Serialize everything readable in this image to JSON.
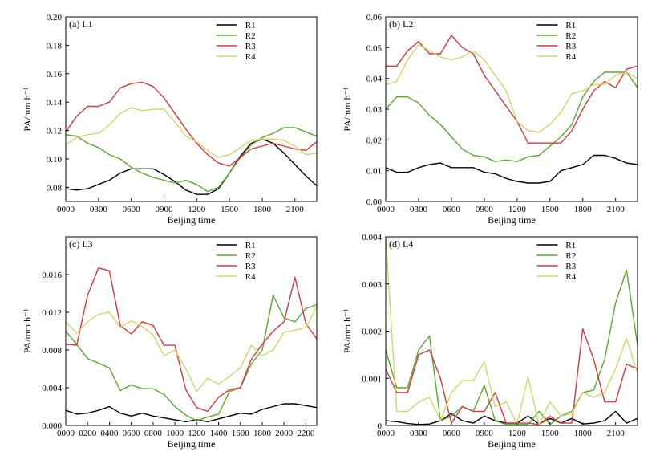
{
  "colors": {
    "R1": "#000000",
    "R2": "#55aa2a",
    "R3": "#d8373a",
    "R4": "#d7d36a"
  },
  "chart_data": [
    {
      "type": "line",
      "title": "(a)  L1",
      "xlabel": "Beijing time",
      "ylabel": "PA/mm h⁻¹",
      "xlim": [
        0,
        23
      ],
      "ylim": [
        0.07,
        0.2
      ],
      "x": [
        0,
        1,
        2,
        3,
        4,
        5,
        6,
        7,
        8,
        9,
        10,
        11,
        12,
        13,
        14,
        15,
        16,
        17,
        18,
        19,
        20,
        21,
        22,
        23
      ],
      "xticks": [
        0,
        3,
        6,
        9,
        12,
        15,
        18,
        21
      ],
      "xtick_labels": [
        "0000",
        "0300",
        "0600",
        "0900",
        "1200",
        "1500",
        "1800",
        "2100"
      ],
      "yticks": [
        0.08,
        0.1,
        0.12,
        0.14,
        0.16,
        0.18,
        0.2
      ],
      "ytick_labels": [
        "0.08",
        "0.10",
        "0.12",
        "0.14",
        "0.16",
        "0.18",
        "0.20"
      ],
      "legend_position": "top-right",
      "series": [
        {
          "name": "R1",
          "values": [
            0.079,
            0.078,
            0.079,
            0.082,
            0.085,
            0.09,
            0.093,
            0.093,
            0.093,
            0.089,
            0.084,
            0.078,
            0.075,
            0.075,
            0.079,
            0.09,
            0.102,
            0.111,
            0.114,
            0.111,
            0.104,
            0.096,
            0.088,
            0.081
          ]
        },
        {
          "name": "R2",
          "values": [
            0.117,
            0.116,
            0.111,
            0.108,
            0.103,
            0.1,
            0.094,
            0.09,
            0.087,
            0.085,
            0.083,
            0.085,
            0.082,
            0.077,
            0.08,
            0.09,
            0.101,
            0.11,
            0.115,
            0.118,
            0.122,
            0.122,
            0.119,
            0.116
          ]
        },
        {
          "name": "R3",
          "values": [
            0.119,
            0.13,
            0.137,
            0.137,
            0.14,
            0.15,
            0.153,
            0.154,
            0.151,
            0.143,
            0.132,
            0.121,
            0.111,
            0.103,
            0.097,
            0.095,
            0.101,
            0.107,
            0.109,
            0.111,
            0.109,
            0.107,
            0.106,
            0.112
          ]
        },
        {
          "name": "R4",
          "values": [
            0.11,
            0.115,
            0.117,
            0.118,
            0.124,
            0.132,
            0.136,
            0.134,
            0.135,
            0.135,
            0.126,
            0.116,
            0.112,
            0.106,
            0.101,
            0.103,
            0.108,
            0.113,
            0.114,
            0.114,
            0.113,
            0.109,
            0.103,
            0.104
          ]
        }
      ]
    },
    {
      "type": "line",
      "title": "(b)  L2",
      "xlabel": "Beijing time",
      "ylabel": "PA/mm h⁻¹",
      "xlim": [
        0,
        23
      ],
      "ylim": [
        0,
        0.06
      ],
      "x": [
        0,
        1,
        2,
        3,
        4,
        5,
        6,
        7,
        8,
        9,
        10,
        11,
        12,
        13,
        14,
        15,
        16,
        17,
        18,
        19,
        20,
        21,
        22,
        23
      ],
      "xticks": [
        0,
        3,
        6,
        9,
        12,
        15,
        18,
        21
      ],
      "xtick_labels": [
        "0000",
        "0300",
        "0600",
        "0900",
        "1200",
        "1500",
        "1800",
        "2100"
      ],
      "yticks": [
        0.0,
        0.01,
        0.02,
        0.03,
        0.04,
        0.05,
        0.06
      ],
      "ytick_labels": [
        "0.00",
        "0.01",
        "0.02",
        "0.03",
        "0.04",
        "0.05",
        "0.06"
      ],
      "legend_position": "top-right",
      "series": [
        {
          "name": "R1",
          "values": [
            0.011,
            0.0095,
            0.0095,
            0.011,
            0.012,
            0.0125,
            0.011,
            0.011,
            0.011,
            0.0095,
            0.009,
            0.0075,
            0.0065,
            0.006,
            0.006,
            0.0065,
            0.01,
            0.011,
            0.012,
            0.015,
            0.015,
            0.014,
            0.0125,
            0.012
          ]
        },
        {
          "name": "R2",
          "values": [
            0.03,
            0.034,
            0.034,
            0.032,
            0.028,
            0.025,
            0.021,
            0.017,
            0.015,
            0.0145,
            0.013,
            0.0135,
            0.013,
            0.0145,
            0.015,
            0.018,
            0.021,
            0.025,
            0.034,
            0.039,
            0.042,
            0.042,
            0.042,
            0.037
          ]
        },
        {
          "name": "R3",
          "values": [
            0.044,
            0.044,
            0.049,
            0.052,
            0.048,
            0.048,
            0.054,
            0.05,
            0.048,
            0.041,
            0.036,
            0.031,
            0.026,
            0.019,
            0.019,
            0.019,
            0.019,
            0.023,
            0.03,
            0.036,
            0.039,
            0.037,
            0.043,
            0.044
          ]
        },
        {
          "name": "R4",
          "values": [
            0.038,
            0.039,
            0.046,
            0.051,
            0.049,
            0.047,
            0.046,
            0.047,
            0.049,
            0.046,
            0.041,
            0.036,
            0.026,
            0.023,
            0.0225,
            0.025,
            0.029,
            0.035,
            0.036,
            0.038,
            0.038,
            0.041,
            0.042,
            0.04
          ]
        }
      ]
    },
    {
      "type": "line",
      "title": "(c)  L3",
      "xlabel": "Beijing time",
      "ylabel": "PA/mm h⁻¹",
      "xlim": [
        0,
        23
      ],
      "ylim": [
        0,
        0.02
      ],
      "x": [
        0,
        1,
        2,
        3,
        4,
        5,
        6,
        7,
        8,
        9,
        10,
        11,
        12,
        13,
        14,
        15,
        16,
        17,
        18,
        19,
        20,
        21,
        22,
        23
      ],
      "xticks": [
        0,
        2,
        4,
        6,
        8,
        10,
        12,
        14,
        16,
        18,
        20,
        22
      ],
      "xtick_labels": [
        "0000",
        "0200",
        "0400",
        "0600",
        "0800",
        "1000",
        "1200",
        "1400",
        "1600",
        "1800",
        "2000",
        "2200"
      ],
      "yticks": [
        0.0,
        0.004,
        0.008,
        0.012,
        0.016
      ],
      "ytick_labels": [
        "0.000",
        "0.004",
        "0.008",
        "0.012",
        "0.016"
      ],
      "legend_position": "top-right",
      "series": [
        {
          "name": "R1",
          "values": [
            0.0016,
            0.0012,
            0.0013,
            0.0016,
            0.002,
            0.0013,
            0.001,
            0.0013,
            0.001,
            0.0008,
            0.0006,
            0.0004,
            0.0006,
            0.0004,
            0.0007,
            0.001,
            0.0013,
            0.0012,
            0.0017,
            0.002,
            0.0023,
            0.0023,
            0.0021,
            0.0019
          ]
        },
        {
          "name": "R2",
          "values": [
            0.01,
            0.0086,
            0.0071,
            0.0066,
            0.0061,
            0.0037,
            0.0043,
            0.0039,
            0.0039,
            0.0033,
            0.002,
            0.0011,
            0.0005,
            0.0009,
            0.0012,
            0.0036,
            0.004,
            0.0065,
            0.008,
            0.0138,
            0.0114,
            0.011,
            0.0124,
            0.0128
          ]
        },
        {
          "name": "R3",
          "values": [
            0.0086,
            0.0085,
            0.0138,
            0.0167,
            0.0164,
            0.0106,
            0.0097,
            0.011,
            0.0106,
            0.0085,
            0.0085,
            0.0038,
            0.0019,
            0.0015,
            0.003,
            0.0038,
            0.004,
            0.007,
            0.0086,
            0.01,
            0.011,
            0.0157,
            0.0108,
            0.0092
          ]
        },
        {
          "name": "R4",
          "values": [
            0.011,
            0.0098,
            0.011,
            0.0118,
            0.012,
            0.0104,
            0.0111,
            0.0105,
            0.0096,
            0.0074,
            0.008,
            0.006,
            0.0036,
            0.005,
            0.0044,
            0.0052,
            0.0061,
            0.0085,
            0.0074,
            0.008,
            0.0099,
            0.0101,
            0.0104,
            0.0126
          ]
        }
      ]
    },
    {
      "type": "line",
      "title": "(d)  L4",
      "xlabel": "Beijing time",
      "ylabel": "PA/mm h⁻¹",
      "xlim": [
        0,
        23
      ],
      "ylim": [
        0,
        0.004
      ],
      "x": [
        0,
        1,
        2,
        3,
        4,
        5,
        6,
        7,
        8,
        9,
        10,
        11,
        12,
        13,
        14,
        15,
        16,
        17,
        18,
        19,
        20,
        21,
        22,
        23
      ],
      "xticks": [
        0,
        3,
        6,
        9,
        12,
        15,
        18,
        21
      ],
      "xtick_labels": [
        "0000",
        "0300",
        "0600",
        "0900",
        "1200",
        "1500",
        "1800",
        "2100"
      ],
      "yticks": [
        0.0,
        0.001,
        0.002,
        0.003,
        0.004
      ],
      "ytick_labels": [
        "0",
        "0.001",
        "0.002",
        "0.003",
        "0.004"
      ],
      "legend_position": "top-right",
      "series": [
        {
          "name": "R1",
          "values": [
            0.0001,
            8e-05,
            4e-05,
            2e-05,
            3e-05,
            0.0001,
            0.00025,
            0.0001,
            5e-05,
            0.0002,
            0.0001,
            5e-05,
            5e-05,
            0.0002,
            3e-05,
            0.00015,
            5e-05,
            0.00015,
            3e-05,
            5e-05,
            0.0001,
            0.0003,
            5e-05,
            0.00015
          ]
        },
        {
          "name": "R2",
          "values": [
            0.0016,
            0.0008,
            0.0008,
            0.0016,
            0.0019,
            0.0001,
            0.0002,
            0.0004,
            0.0003,
            0.00085,
            0.0001,
            2e-05,
            2e-05,
            2e-05,
            0.0003,
            2e-05,
            0.0002,
            0.0003,
            0.0007,
            0.00075,
            0.0014,
            0.0026,
            0.0033,
            0.0017
          ]
        },
        {
          "name": "R3",
          "values": [
            0.0012,
            0.0007,
            0.0007,
            0.0015,
            0.0016,
            0.001,
            5e-05,
            0.0004,
            0.0003,
            0.0003,
            0.0007,
            5e-05,
            5e-05,
            5e-05,
            2e-05,
            0.0002,
            5e-05,
            5e-05,
            0.00205,
            0.0014,
            0.0005,
            0.0005,
            0.0013,
            0.0012
          ]
        },
        {
          "name": "R4",
          "values": [
            0.0042,
            0.0003,
            0.0003,
            0.0005,
            0.0006,
            0.0001,
            0.0007,
            0.00095,
            0.00095,
            0.00135,
            0.0004,
            0.0005,
            2e-05,
            0.00103,
            2e-05,
            0.0005,
            0.0002,
            0.00025,
            0.0007,
            0.0006,
            0.0007,
            0.0012,
            0.00185,
            0.0011
          ]
        }
      ]
    }
  ]
}
